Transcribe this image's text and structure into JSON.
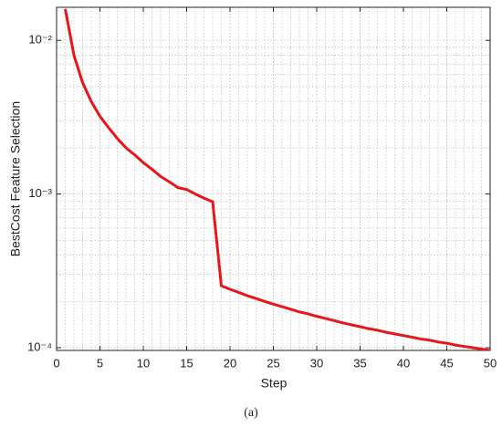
{
  "chart_data": {
    "type": "line",
    "xlabel": "Step",
    "ylabel": "BestCost Feature Selection",
    "caption": "(a)",
    "x": [
      1,
      2,
      3,
      4,
      5,
      6,
      7,
      8,
      9,
      10,
      11,
      12,
      13,
      14,
      15,
      16,
      17,
      18,
      19,
      20,
      21,
      22,
      23,
      24,
      25,
      26,
      27,
      28,
      29,
      30,
      31,
      32,
      33,
      34,
      35,
      36,
      37,
      38,
      39,
      40,
      41,
      42,
      43,
      44,
      45,
      46,
      47,
      48,
      49,
      50
    ],
    "series": [
      {
        "name": "BestCost",
        "color": "#e8161b",
        "values": [
          0.016,
          0.008,
          0.0053,
          0.004,
          0.0032,
          0.0027,
          0.0023,
          0.002,
          0.0018,
          0.0016,
          0.00145,
          0.0013,
          0.0012,
          0.0011,
          0.00107,
          0.001,
          0.00094,
          0.00089,
          0.000253,
          0.00024,
          0.000229,
          0.000218,
          0.000209,
          0.0002,
          0.000192,
          0.000185,
          0.000178,
          0.000171,
          0.000166,
          0.00016,
          0.000155,
          0.00015,
          0.000145,
          0.000141,
          0.000137,
          0.000133,
          0.00013,
          0.000126,
          0.000123,
          0.00012,
          0.000117,
          0.000114,
          0.000112,
          0.000109,
          0.000107,
          0.000104,
          0.000102,
          0.0001,
          9.8e-05,
          9.6e-05
        ]
      }
    ],
    "xlim": [
      0,
      50
    ],
    "xticks": [
      0,
      5,
      10,
      15,
      20,
      25,
      30,
      35,
      40,
      45,
      50
    ],
    "ylim": [
      9.6e-05,
      0.0164
    ],
    "ylog": true,
    "yticks": [
      {
        "value": 0.0001,
        "label": "10⁻⁴"
      },
      {
        "value": 0.001,
        "label": "10⁻³"
      },
      {
        "value": 0.01,
        "label": "10⁻²"
      }
    ],
    "grid": true,
    "minor_grid": true
  }
}
